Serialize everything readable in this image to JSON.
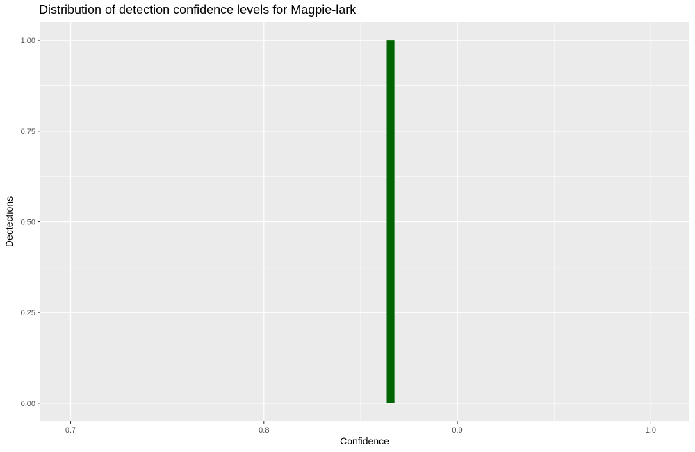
{
  "chart_data": {
    "type": "bar",
    "title": "Distribution of detection confidence levels for Magpie-lark",
    "xlabel": "Confidence",
    "ylabel": "Dectections",
    "xlim": [
      0.684,
      1.02
    ],
    "ylim": [
      -0.05,
      1.05
    ],
    "x_ticks": [
      0.7,
      0.8,
      0.9,
      1.0
    ],
    "x_tick_labels": [
      "0.7",
      "0.8",
      "0.9",
      "1.0"
    ],
    "y_ticks": [
      0.0,
      0.25,
      0.5,
      0.75,
      1.0
    ],
    "y_tick_labels": [
      "0.00",
      "0.25",
      "0.50",
      "0.75",
      "1.00"
    ],
    "grid": true,
    "bars": [
      {
        "xmin": 0.8635,
        "xmax": 0.8675,
        "value": 1
      }
    ],
    "colors": {
      "panel": "#ebebeb",
      "grid": "#ffffff",
      "bar": "#006400"
    }
  }
}
